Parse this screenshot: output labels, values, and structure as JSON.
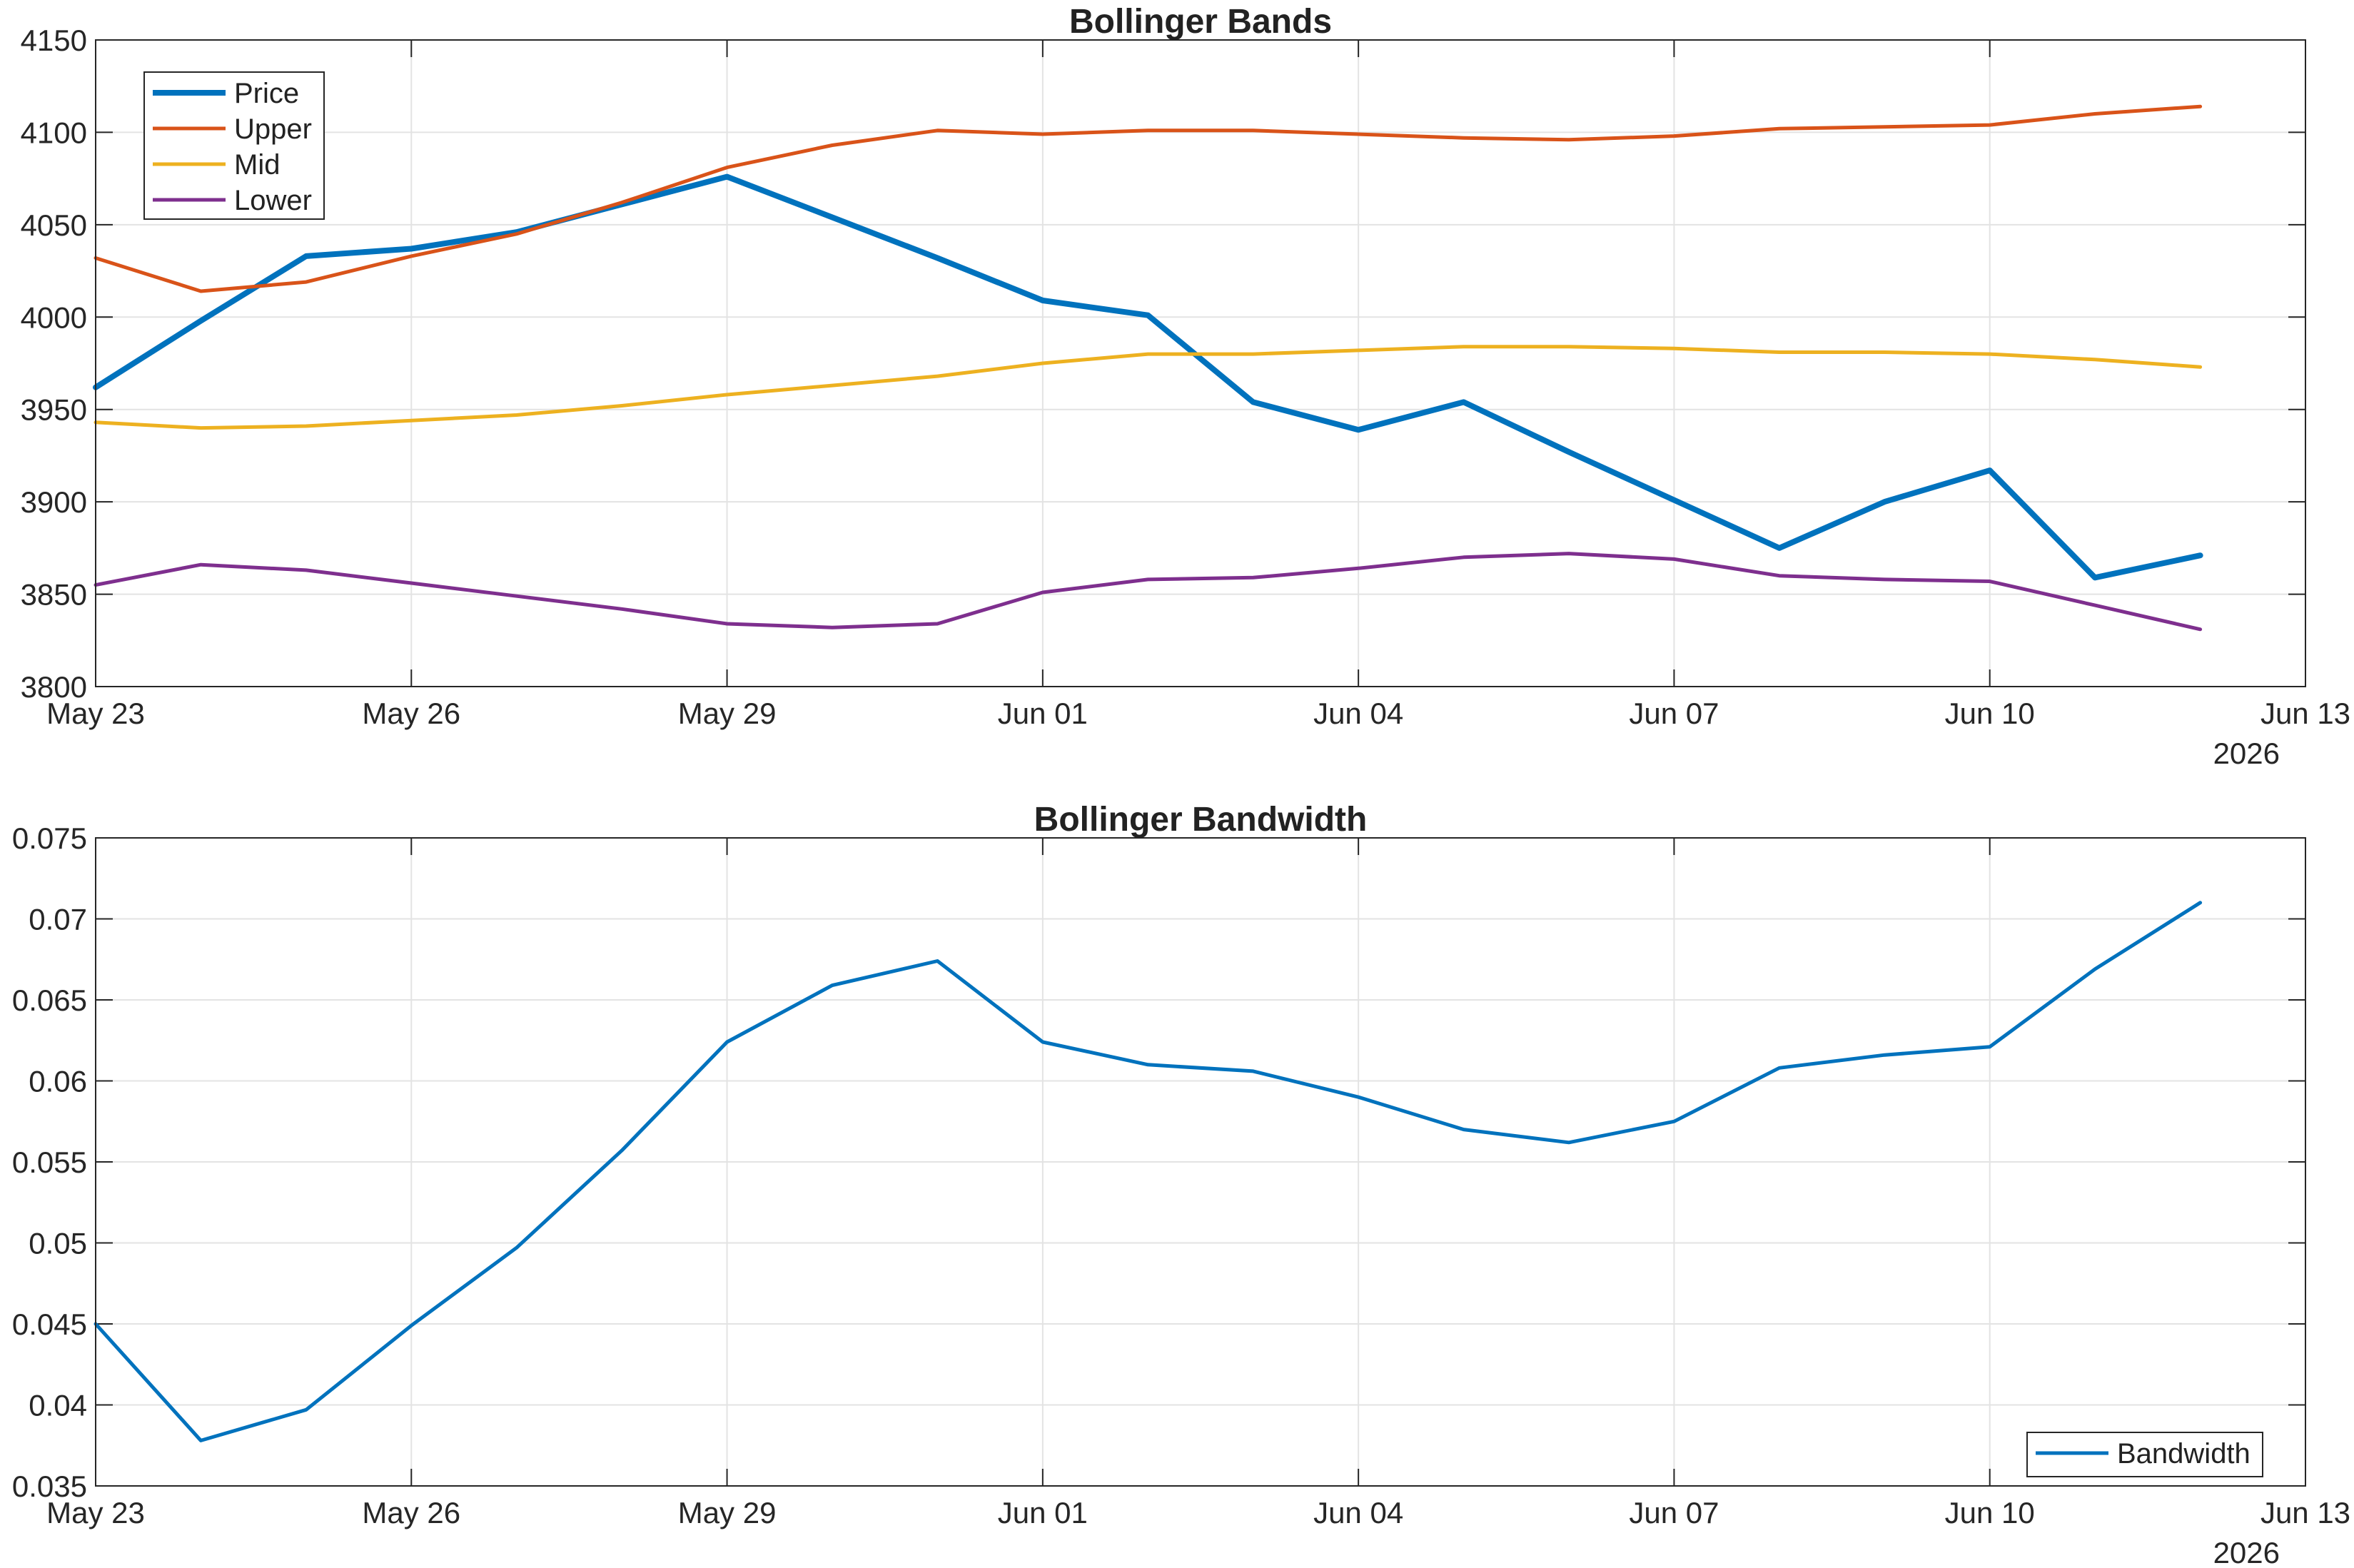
{
  "chart_data": [
    {
      "type": "line",
      "title": "Bollinger Bands",
      "xlabel": "",
      "ylabel": "",
      "x_range": [
        "2026-05-23",
        "2026-06-13"
      ],
      "ylim": [
        3800,
        4150
      ],
      "grid": true,
      "legend_position": "top-left",
      "x_ticks": [
        "May 23",
        "May 26",
        "May 29",
        "Jun 01",
        "Jun 04",
        "Jun 07",
        "Jun 10",
        "Jun 13"
      ],
      "x_tick_values": [
        "2026-05-23",
        "2026-05-26",
        "2026-05-29",
        "2026-06-01",
        "2026-06-04",
        "2026-06-07",
        "2026-06-10",
        "2026-06-13"
      ],
      "x_year_label": "2026",
      "y_ticks": [
        "3800",
        "3850",
        "3900",
        "3950",
        "4000",
        "4050",
        "4100",
        "4150"
      ],
      "y_tick_values": [
        3800,
        3850,
        3900,
        3950,
        4000,
        4050,
        4100,
        4150
      ],
      "x": [
        "2026-05-23",
        "2026-05-24",
        "2026-05-25",
        "2026-05-26",
        "2026-05-27",
        "2026-05-28",
        "2026-05-29",
        "2026-05-30",
        "2026-05-31",
        "2026-06-01",
        "2026-06-02",
        "2026-06-03",
        "2026-06-04",
        "2026-06-05",
        "2026-06-06",
        "2026-06-07",
        "2026-06-08",
        "2026-06-09",
        "2026-06-10",
        "2026-06-11",
        "2026-06-12"
      ],
      "series": [
        {
          "name": "Price",
          "color": "#0072BD",
          "values": [
            3962,
            3998,
            4033,
            4037,
            4046,
            4061,
            4076,
            4054,
            4032,
            4009,
            4001,
            3954,
            3939,
            3954,
            3927,
            3901,
            3875,
            3900,
            3917,
            3859,
            3871
          ]
        },
        {
          "name": "Upper",
          "color": "#D95319",
          "values": [
            4032,
            4014,
            4019,
            4033,
            4045,
            4062,
            4081,
            4093,
            4101,
            4099,
            4101,
            4101,
            4099,
            4097,
            4096,
            4098,
            4102,
            4103,
            4104,
            4110,
            4114
          ]
        },
        {
          "name": "Mid",
          "color": "#EDB120",
          "values": [
            3943,
            3940,
            3941,
            3944,
            3947,
            3952,
            3958,
            3963,
            3968,
            3975,
            3980,
            3980,
            3982,
            3984,
            3984,
            3983,
            3981,
            3981,
            3980,
            3977,
            3973
          ]
        },
        {
          "name": "Lower",
          "color": "#7E2F8E",
          "values": [
            3855,
            3866,
            3863,
            3856,
            3849,
            3842,
            3834,
            3832,
            3834,
            3851,
            3858,
            3859,
            3864,
            3870,
            3872,
            3869,
            3860,
            3858,
            3857,
            3844,
            3831
          ]
        }
      ]
    },
    {
      "type": "line",
      "title": "Bollinger Bandwidth",
      "xlabel": "",
      "ylabel": "",
      "x_range": [
        "2026-05-23",
        "2026-06-13"
      ],
      "ylim": [
        0.035,
        0.075
      ],
      "grid": true,
      "legend_position": "bottom-right",
      "x_ticks": [
        "May 23",
        "May 26",
        "May 29",
        "Jun 01",
        "Jun 04",
        "Jun 07",
        "Jun 10",
        "Jun 13"
      ],
      "x_tick_values": [
        "2026-05-23",
        "2026-05-26",
        "2026-05-29",
        "2026-06-01",
        "2026-06-04",
        "2026-06-07",
        "2026-06-10",
        "2026-06-13"
      ],
      "x_year_label": "2026",
      "y_ticks": [
        "0.035",
        "0.04",
        "0.045",
        "0.05",
        "0.055",
        "0.06",
        "0.065",
        "0.07",
        "0.075"
      ],
      "y_tick_values": [
        0.035,
        0.04,
        0.045,
        0.05,
        0.055,
        0.06,
        0.065,
        0.07,
        0.075
      ],
      "x": [
        "2026-05-23",
        "2026-05-24",
        "2026-05-25",
        "2026-05-26",
        "2026-05-27",
        "2026-05-28",
        "2026-05-29",
        "2026-05-30",
        "2026-05-31",
        "2026-06-01",
        "2026-06-02",
        "2026-06-03",
        "2026-06-04",
        "2026-06-05",
        "2026-06-06",
        "2026-06-07",
        "2026-06-08",
        "2026-06-09",
        "2026-06-10",
        "2026-06-11",
        "2026-06-12"
      ],
      "series": [
        {
          "name": "Bandwidth",
          "color": "#0072BD",
          "values": [
            0.045,
            0.0378,
            0.0397,
            0.0449,
            0.0497,
            0.0557,
            0.0624,
            0.0659,
            0.0674,
            0.0624,
            0.061,
            0.0606,
            0.059,
            0.057,
            0.0562,
            0.0575,
            0.0608,
            0.0616,
            0.0621,
            0.0669,
            0.071
          ]
        }
      ]
    }
  ]
}
